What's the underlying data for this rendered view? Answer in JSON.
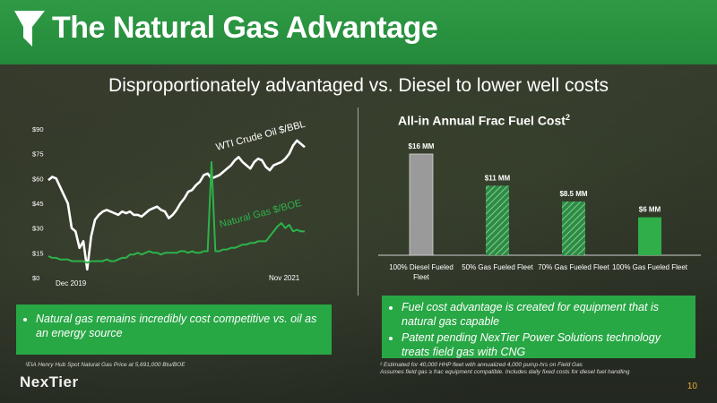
{
  "header": {
    "title": "The Natural Gas Advantage"
  },
  "subtitle": "Disproportionately advantaged vs. Diesel to lower well costs",
  "left_box": {
    "bullets": [
      "Natural gas remains incredibly cost competitive vs. oil as an energy source"
    ]
  },
  "right_box": {
    "bullets": [
      "Fuel cost advantage is created for equipment that is natural gas capable",
      "Patent pending NexTier Power Solutions technology treats field gas with CNG"
    ]
  },
  "footnotes": {
    "left": "¹EIA Henry Hub Spot Natural Gas Price at 5,691,000 Btu/BOE",
    "right_1": "² Estimated for 40,000 HHP fleet with annualized 4,000 pump-hrs on Field Gas",
    "right_2": "Assumes field gas ≥ frac equipment compatible. Includes daily fixed costs for diesel fuel handling"
  },
  "brand": "NexTier",
  "page_number": "10",
  "colors": {
    "header_green": "#2a9a43",
    "box_green": "#28a745",
    "oil_line": "#ffffff",
    "gas_line": "#2db34a"
  },
  "chart_data": [
    {
      "type": "line",
      "yticks": [
        "$90",
        "$75",
        "$60",
        "$45",
        "$30",
        "$15",
        "$0"
      ],
      "ylim": [
        0,
        90
      ],
      "x_start_label": "Dec 2019",
      "x_end_label": "Nov 2021",
      "grid": false,
      "series": [
        {
          "name": "WTI Crude Oil $/BBL",
          "color": "#ffffff",
          "values": [
            59,
            61,
            60,
            55,
            50,
            45,
            30,
            28,
            18,
            22,
            5,
            25,
            35,
            38,
            40,
            41,
            40,
            39,
            38,
            40,
            39,
            40,
            38,
            38,
            37,
            39,
            41,
            42,
            43,
            41,
            40,
            36,
            38,
            41,
            45,
            48,
            52,
            53,
            56,
            58,
            62,
            63,
            60,
            61,
            62,
            64,
            66,
            68,
            71,
            73,
            70,
            68,
            66,
            70,
            72,
            71,
            67,
            65,
            68,
            69,
            70,
            72,
            75,
            80,
            83,
            81,
            79
          ]
        },
        {
          "name": "Natural Gas $/BOE",
          "color": "#2db34a",
          "values": [
            13,
            12,
            12,
            11,
            11,
            11,
            10,
            10,
            10,
            10,
            9,
            10,
            10,
            10,
            10,
            11,
            10,
            10,
            11,
            12,
            12,
            14,
            14,
            15,
            14,
            15,
            16,
            15,
            15,
            14,
            15,
            15,
            15,
            15,
            16,
            16,
            15,
            16,
            15,
            15,
            16,
            16,
            70,
            16,
            16,
            17,
            17,
            18,
            18,
            19,
            20,
            20,
            21,
            21,
            22,
            22,
            22,
            25,
            28,
            31,
            33,
            30,
            32,
            28,
            29,
            28,
            28
          ]
        }
      ]
    },
    {
      "type": "bar",
      "title": "All-in Annual Frac Fuel Cost",
      "title_sup": "2",
      "categories": [
        "100% Diesel Fueled Fleet",
        "50% Gas Fueled Fleet",
        "70% Gas Fueled Fleet",
        "100% Gas Fueled Fleet"
      ],
      "values": [
        16,
        11,
        8.5,
        6
      ],
      "value_labels": [
        "$16 MM",
        "$11 MM",
        "$8.5 MM",
        "$6 MM"
      ],
      "unit": "$ MM",
      "styles": [
        "gray",
        "hatch",
        "hatch",
        "green"
      ]
    }
  ]
}
